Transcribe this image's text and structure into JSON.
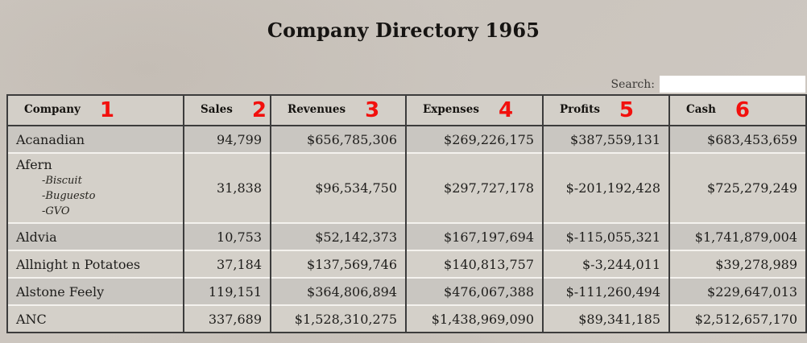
{
  "title": "Company Directory 1965",
  "search": {
    "label": "Search:",
    "value": ""
  },
  "colors": {
    "badge_red": "#f2100d",
    "page_background": "#ccc6bf",
    "row_dark": "#c9c6c1",
    "row_light": "#d4d0c9",
    "border_dark": "#3c3c3c"
  },
  "table": {
    "columns": [
      {
        "label": "Company",
        "badge": "1"
      },
      {
        "label": "Sales",
        "badge": "2"
      },
      {
        "label": "Revenues",
        "badge": "3"
      },
      {
        "label": "Expenses",
        "badge": "4"
      },
      {
        "label": "Profits",
        "badge": "5"
      },
      {
        "label": "Cash",
        "badge": "6"
      }
    ],
    "rows": [
      {
        "company": "Acanadian",
        "subsidiaries": [],
        "sales": "94,799",
        "revenues": "$656,785,306",
        "expenses": "$269,226,175",
        "profits": "$387,559,131",
        "cash": "$683,453,659"
      },
      {
        "company": "Afern",
        "subsidiaries": [
          "-Biscuit",
          "-Buguesto",
          "-GVO"
        ],
        "sales": "31,838",
        "revenues": "$96,534,750",
        "expenses": "$297,727,178",
        "profits": "$-201,192,428",
        "cash": "$725,279,249"
      },
      {
        "company": "Aldvia",
        "subsidiaries": [],
        "sales": "10,753",
        "revenues": "$52,142,373",
        "expenses": "$167,197,694",
        "profits": "$-115,055,321",
        "cash": "$1,741,879,004"
      },
      {
        "company": "Allnight n Potatoes",
        "subsidiaries": [],
        "sales": "37,184",
        "revenues": "$137,569,746",
        "expenses": "$140,813,757",
        "profits": "$-3,244,011",
        "cash": "$39,278,989"
      },
      {
        "company": "Alstone Feely",
        "subsidiaries": [],
        "sales": "119,151",
        "revenues": "$364,806,894",
        "expenses": "$476,067,388",
        "profits": "$-111,260,494",
        "cash": "$229,647,013"
      },
      {
        "company": "ANC",
        "subsidiaries": [],
        "sales": "337,689",
        "revenues": "$1,528,310,275",
        "expenses": "$1,438,969,090",
        "profits": "$89,341,185",
        "cash": "$2,512,657,170"
      }
    ]
  }
}
